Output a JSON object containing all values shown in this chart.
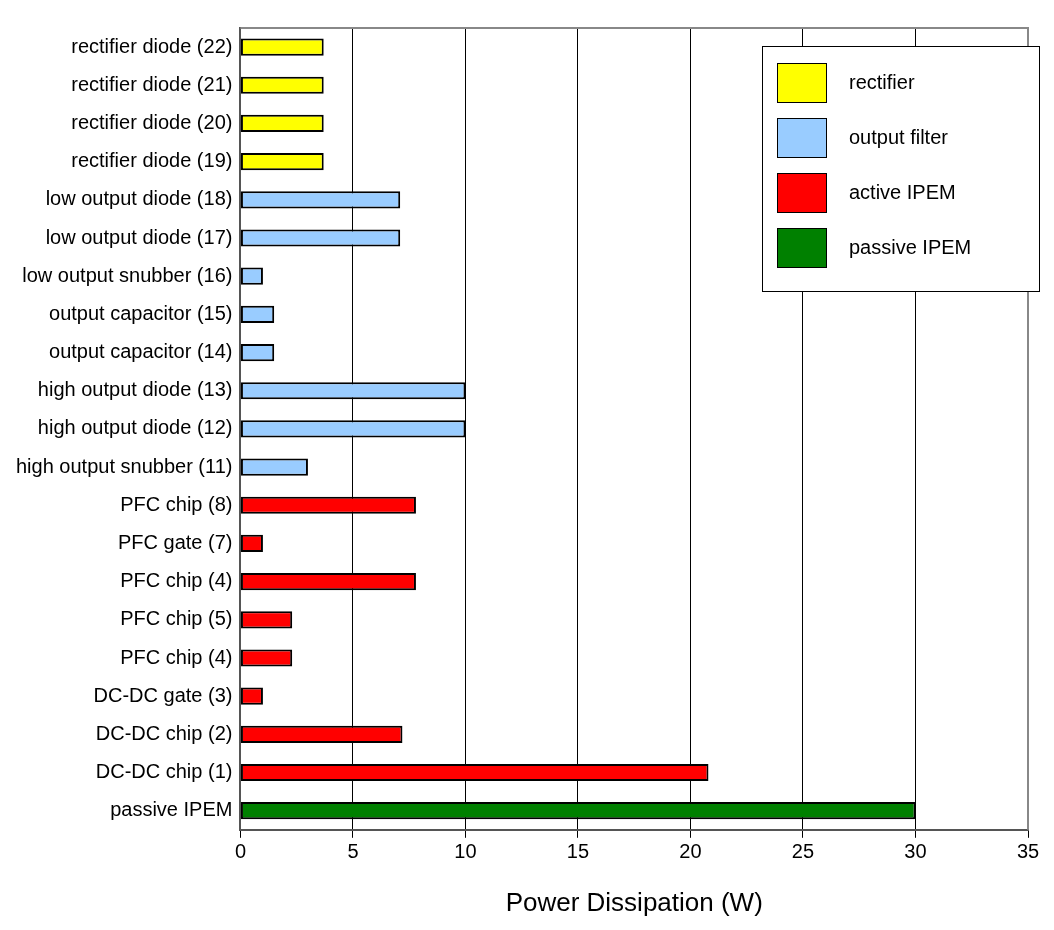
{
  "chart_data": {
    "type": "bar",
    "orientation": "horizontal",
    "xlabel": "Power Dissipation (W)",
    "categories": [
      "rectifier diode (22)",
      "rectifier diode (21)",
      "rectifier diode (20)",
      "rectifier diode (19)",
      "low output diode (18)",
      "low output diode (17)",
      "low output snubber (16)",
      "output capacitor (15)",
      "output capacitor (14)",
      "high output diode (13)",
      "high output diode (12)",
      "high output snubber (11)",
      "PFC chip (8)",
      "PFC gate (7)",
      "PFC chip (4)",
      "PFC chip (5)",
      "PFC chip (4)",
      "DC-DC gate (3)",
      "DC-DC chip (2)",
      "DC-DC chip (1)",
      "passive IPEM"
    ],
    "series": [
      {
        "name": "rectifier",
        "color": "#ffff00",
        "values": [
          3.7,
          3.7,
          3.7,
          3.7,
          null,
          null,
          null,
          null,
          null,
          null,
          null,
          null,
          null,
          null,
          null,
          null,
          null,
          null,
          null,
          null,
          null
        ]
      },
      {
        "name": "output filter",
        "color": "#99ccff",
        "values": [
          null,
          null,
          null,
          null,
          7.1,
          7.1,
          1.0,
          1.5,
          1.5,
          10.0,
          10.0,
          3.0,
          null,
          null,
          null,
          null,
          null,
          null,
          null,
          null,
          null
        ]
      },
      {
        "name": "active IPEM",
        "color": "#ff0000",
        "values": [
          null,
          null,
          null,
          null,
          null,
          null,
          null,
          null,
          null,
          null,
          null,
          null,
          7.8,
          1.0,
          7.8,
          2.3,
          2.3,
          1.0,
          7.2,
          20.8,
          null
        ]
      },
      {
        "name": "passive IPEM",
        "color": "#008000",
        "values": [
          null,
          null,
          null,
          null,
          null,
          null,
          null,
          null,
          null,
          null,
          null,
          null,
          null,
          null,
          null,
          null,
          null,
          null,
          null,
          null,
          30
        ]
      }
    ],
    "xlim": [
      0,
      35
    ],
    "xticks": [
      0,
      5,
      10,
      15,
      20,
      25,
      30,
      35
    ],
    "grid": "x",
    "legend": "top right"
  }
}
